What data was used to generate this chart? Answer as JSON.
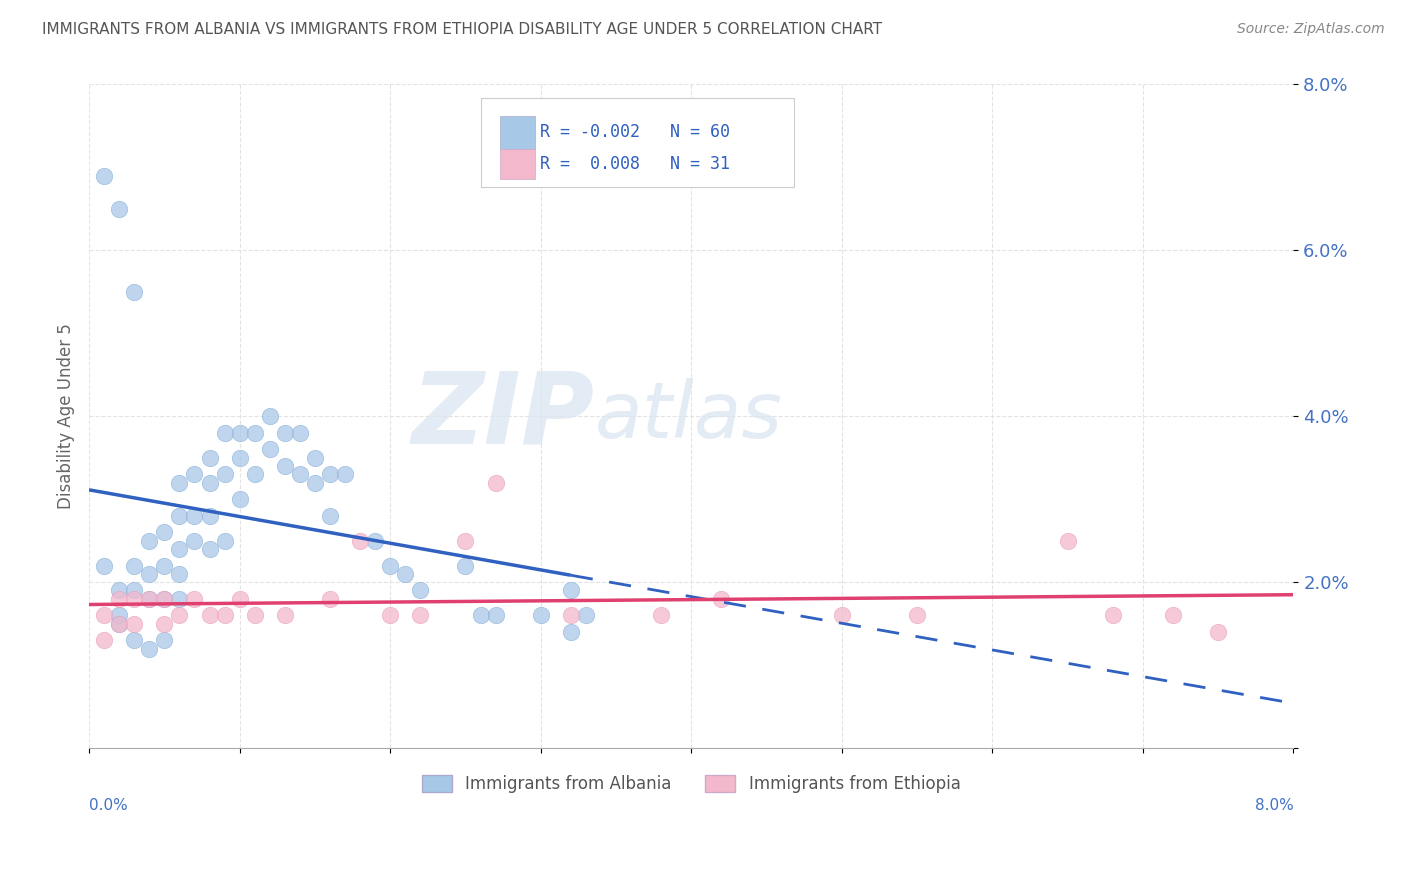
{
  "title": "IMMIGRANTS FROM ALBANIA VS IMMIGRANTS FROM ETHIOPIA DISABILITY AGE UNDER 5 CORRELATION CHART",
  "source": "Source: ZipAtlas.com",
  "ylabel": "Disability Age Under 5",
  "xlim": [
    0.0,
    0.08
  ],
  "ylim": [
    0.0,
    0.08
  ],
  "yticks": [
    0.0,
    0.02,
    0.04,
    0.06,
    0.08
  ],
  "xticks": [
    0.0,
    0.01,
    0.02,
    0.03,
    0.04,
    0.05,
    0.06,
    0.07,
    0.08
  ],
  "yticklabels": [
    "",
    "2.0%",
    "4.0%",
    "6.0%",
    "8.0%"
  ],
  "xticklabels_ends": [
    "0.0%",
    "8.0%"
  ],
  "albania_color": "#a8c8e8",
  "ethiopia_color": "#f4b8cc",
  "albania_line_color": "#3060c0",
  "ethiopia_line_color": "#e04070",
  "albania_R": -0.002,
  "albania_N": 60,
  "ethiopia_R": 0.008,
  "ethiopia_N": 31,
  "legend_R_color": "#3060c0",
  "watermark_zip": "ZIP",
  "watermark_atlas": "atlas",
  "background_color": "#ffffff",
  "grid_color": "#cccccc",
  "tick_label_color": "#4472c4",
  "albania_x": [
    0.001,
    0.001,
    0.002,
    0.002,
    0.002,
    0.003,
    0.003,
    0.003,
    0.003,
    0.004,
    0.004,
    0.004,
    0.004,
    0.004,
    0.005,
    0.005,
    0.005,
    0.005,
    0.005,
    0.006,
    0.006,
    0.006,
    0.006,
    0.007,
    0.007,
    0.007,
    0.007,
    0.008,
    0.008,
    0.008,
    0.008,
    0.009,
    0.009,
    0.009,
    0.009,
    0.01,
    0.01,
    0.01,
    0.011,
    0.011,
    0.012,
    0.012,
    0.013,
    0.013,
    0.014,
    0.015,
    0.015,
    0.016,
    0.016,
    0.017,
    0.019,
    0.02,
    0.021,
    0.022,
    0.025,
    0.026,
    0.027,
    0.03,
    0.032,
    0.033
  ],
  "albania_y": [
    0.019,
    0.015,
    0.021,
    0.018,
    0.015,
    0.022,
    0.019,
    0.016,
    0.013,
    0.025,
    0.021,
    0.018,
    0.015,
    0.012,
    0.026,
    0.022,
    0.019,
    0.016,
    0.013,
    0.028,
    0.024,
    0.021,
    0.018,
    0.032,
    0.028,
    0.025,
    0.022,
    0.033,
    0.03,
    0.027,
    0.024,
    0.035,
    0.032,
    0.028,
    0.025,
    0.038,
    0.034,
    0.03,
    0.038,
    0.034,
    0.04,
    0.036,
    0.038,
    0.034,
    0.038,
    0.035,
    0.032,
    0.033,
    0.028,
    0.033,
    0.025,
    0.022,
    0.021,
    0.019,
    0.016,
    0.016,
    0.016,
    0.014,
    0.016,
    0.014
  ],
  "ethiopia_x": [
    0.001,
    0.001,
    0.002,
    0.002,
    0.003,
    0.003,
    0.004,
    0.004,
    0.005,
    0.005,
    0.006,
    0.006,
    0.007,
    0.007,
    0.008,
    0.009,
    0.01,
    0.011,
    0.013,
    0.014,
    0.016,
    0.018,
    0.02,
    0.022,
    0.025,
    0.028,
    0.032,
    0.04,
    0.05,
    0.065,
    0.072
  ],
  "ethiopia_y": [
    0.016,
    0.013,
    0.018,
    0.015,
    0.018,
    0.015,
    0.018,
    0.015,
    0.018,
    0.015,
    0.016,
    0.013,
    0.018,
    0.015,
    0.016,
    0.016,
    0.018,
    0.016,
    0.016,
    0.018,
    0.016,
    0.018,
    0.016,
    0.016,
    0.018,
    0.016,
    0.025,
    0.016,
    0.018,
    0.025,
    0.016
  ]
}
